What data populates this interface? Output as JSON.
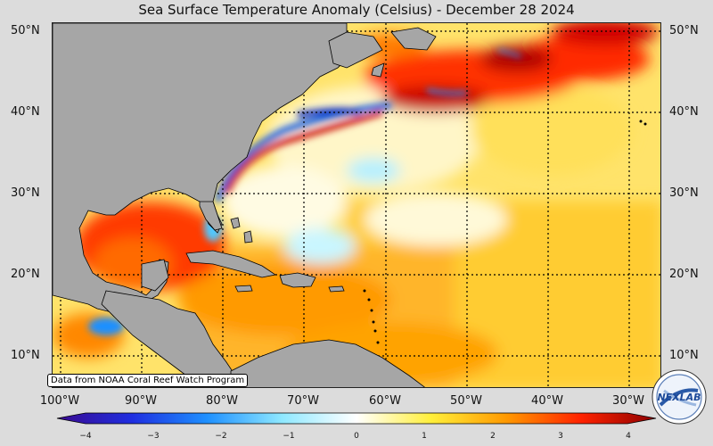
{
  "title": "Sea Surface Temperature Anomaly (Celsius) - December 28 2024",
  "credit": "Data from NOAA Coral Reef Watch Program",
  "lat_labels": [
    "50°N",
    "40°N",
    "30°N",
    "20°N",
    "10°N"
  ],
  "lon_labels": [
    "100°W",
    "90°W",
    "80°W",
    "70°W",
    "60°W",
    "50°W",
    "40°W",
    "30°W"
  ],
  "colorbar": {
    "ticks": [
      "−4",
      "−3",
      "−2",
      "−1",
      "0",
      "1",
      "2",
      "3",
      "4"
    ],
    "colors": [
      "#3a0a90",
      "#1f2ee0",
      "#1e90ff",
      "#8ee8ff",
      "#ffffff",
      "#ffef3a",
      "#ff9900",
      "#ff2200",
      "#8b0000"
    ]
  },
  "logo": {
    "text": "NEXLAB"
  },
  "colors": {
    "land": "#a6a6a6",
    "warm": "#ff9900",
    "cool": "#1e90ff",
    "background": "#dcdcdc"
  }
}
